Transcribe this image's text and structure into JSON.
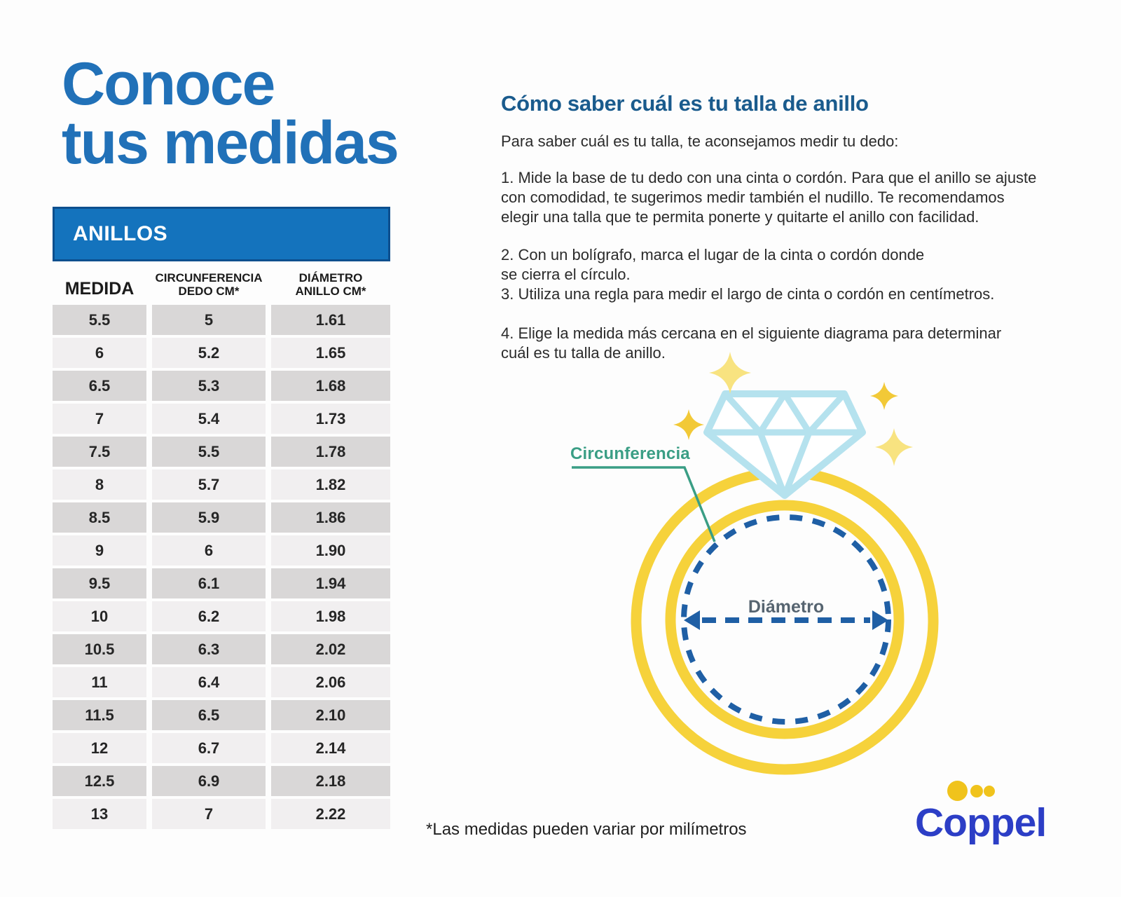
{
  "title": {
    "line1": "Conoce",
    "line2": "tus medidas"
  },
  "size_table": {
    "banner": "ANILLOS",
    "columns": [
      [
        "MEDIDA"
      ],
      [
        "CIRCUNFERENCIA",
        "DEDO CM*"
      ],
      [
        "DIÁMETRO",
        "ANILLO CM*"
      ]
    ],
    "rows": [
      [
        "5.5",
        "5",
        "1.61"
      ],
      [
        "6",
        "5.2",
        "1.65"
      ],
      [
        "6.5",
        "5.3",
        "1.68"
      ],
      [
        "7",
        "5.4",
        "1.73"
      ],
      [
        "7.5",
        "5.5",
        "1.78"
      ],
      [
        "8",
        "5.7",
        "1.82"
      ],
      [
        "8.5",
        "5.9",
        "1.86"
      ],
      [
        "9",
        "6",
        "1.90"
      ],
      [
        "9.5",
        "6.1",
        "1.94"
      ],
      [
        "10",
        "6.2",
        "1.98"
      ],
      [
        "10.5",
        "6.3",
        "2.02"
      ],
      [
        "11",
        "6.4",
        "2.06"
      ],
      [
        "11.5",
        "6.5",
        "2.10"
      ],
      [
        "12",
        "6.7",
        "2.14"
      ],
      [
        "12.5",
        "6.9",
        "2.18"
      ],
      [
        "13",
        "7",
        "2.22"
      ]
    ]
  },
  "guide": {
    "heading": "Cómo saber cuál es tu talla de anillo",
    "intro": "Para saber cuál es tu talla, te aconsejamos medir tu dedo:",
    "steps": [
      [
        "1. Mide la base de tu dedo con una cinta o cordón. Para que el anillo se ajuste",
        "con comodidad, te sugerimos medir también el nudillo. Te recomendamos",
        "elegir una talla que te permita ponerte y quitarte el anillo con facilidad."
      ],
      [
        "2. Con un bolígrafo, marca el lugar de la cinta o cordón donde",
        "se cierra el círculo."
      ],
      [
        "3. Utiliza una regla para medir el largo de cinta o cordón en centímetros."
      ],
      [
        "4. Elige la medida más cercana en el siguiente diagrama para determinar",
        "cuál es tu talla de anillo."
      ]
    ]
  },
  "diagram": {
    "circumference_label": "Circunferencia",
    "diameter_label": "Diámetro"
  },
  "footnote": "*Las medidas pueden variar por milímetros",
  "logo": {
    "text": "Coppel"
  },
  "colors": {
    "page-bg": "#fdfdfd",
    "title-blue": "#2171b8",
    "table-header-bg": "#1473bd",
    "table-header-border": "#0d4f8e",
    "row-dark": "#d9d7d7",
    "row-light": "#f1eff0",
    "heading-blue": "#1a5b8d",
    "body-text": "#2b2b2b",
    "ring-yellow": "#f6d23b",
    "diamond-blue": "#b5e2ee",
    "sparkle-gold": "#f2c937",
    "sparkle-pale": "#f8e380",
    "teal": "#3a9e85",
    "dash-blue": "#1f5fa5",
    "diameter-gray": "#566470",
    "logo-blue": "#2c3ec6",
    "logo-yellow": "#f0c31c"
  }
}
